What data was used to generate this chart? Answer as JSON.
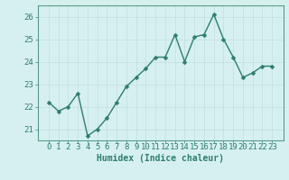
{
  "x": [
    0,
    1,
    2,
    3,
    4,
    5,
    6,
    7,
    8,
    9,
    10,
    11,
    12,
    13,
    14,
    15,
    16,
    17,
    18,
    19,
    20,
    21,
    22,
    23
  ],
  "y": [
    22.2,
    21.8,
    22.0,
    22.6,
    20.7,
    21.0,
    21.5,
    22.2,
    22.9,
    23.3,
    23.7,
    24.2,
    24.2,
    25.2,
    24.0,
    25.1,
    25.2,
    26.1,
    25.0,
    24.2,
    23.3,
    23.5,
    23.8,
    23.8
  ],
  "line_color": "#2e7d6e",
  "marker": "D",
  "marker_size": 2.5,
  "bg_color": "#d6f0f0",
  "grid_color": "#c4dede",
  "xlabel": "Humidex (Indice chaleur)",
  "ylabel": "",
  "ylim": [
    20.5,
    26.5
  ],
  "yticks": [
    21,
    22,
    23,
    24,
    25,
    26
  ],
  "xticks": [
    0,
    1,
    2,
    3,
    4,
    5,
    6,
    7,
    8,
    9,
    10,
    11,
    12,
    13,
    14,
    15,
    16,
    17,
    18,
    19,
    20,
    21,
    22,
    23
  ],
  "tick_color": "#2e7d6e",
  "label_color": "#2e7d6e",
  "spine_color": "#5a9a8a",
  "xlabel_fontsize": 7,
  "tick_fontsize": 6.5,
  "line_width": 1.0
}
